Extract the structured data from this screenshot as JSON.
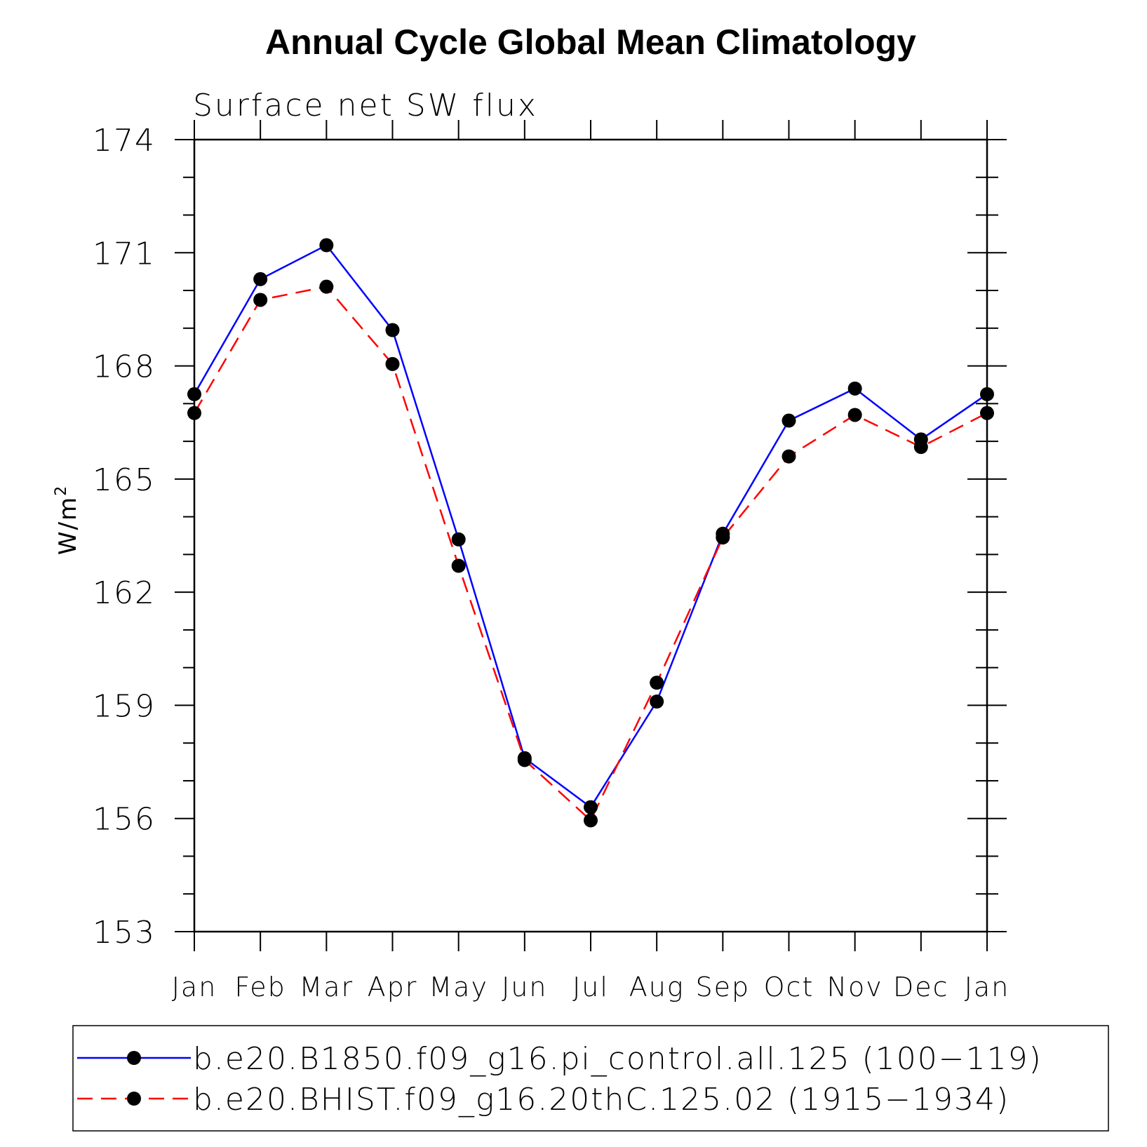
{
  "chart_data": {
    "type": "line",
    "title": "Annual Cycle Global Mean Climatology",
    "subtitle": "Surface net SW flux",
    "ylabel": "W/m",
    "ylabel_superscript": "2",
    "xlabel": "",
    "categories": [
      "Jan",
      "Feb",
      "Mar",
      "Apr",
      "May",
      "Jun",
      "Jul",
      "Aug",
      "Sep",
      "Oct",
      "Nov",
      "Dec",
      "Jan"
    ],
    "ylim": [
      153,
      174
    ],
    "yticks": [
      153,
      156,
      159,
      162,
      165,
      168,
      171,
      174
    ],
    "series": [
      {
        "name": "b.e20.B1850.f09_g16.pi_control.all.125 (100−119)",
        "color": "#0000ff",
        "line_style": "solid",
        "marker": "filled-circle",
        "values": [
          167.25,
          170.3,
          171.2,
          168.95,
          163.4,
          157.6,
          156.3,
          159.1,
          163.55,
          166.55,
          167.4,
          166.05,
          167.25
        ]
      },
      {
        "name": "b.e20.BHIST.f09_g16.20thC.125.02 (1915−1934)",
        "color": "#ff0000",
        "line_style": "dashed",
        "marker": "filled-circle",
        "values": [
          166.75,
          169.75,
          170.1,
          168.05,
          162.7,
          157.55,
          155.95,
          159.6,
          163.45,
          165.6,
          166.7,
          165.85,
          166.75
        ]
      }
    ],
    "legend_position": "bottom",
    "grid": false
  }
}
